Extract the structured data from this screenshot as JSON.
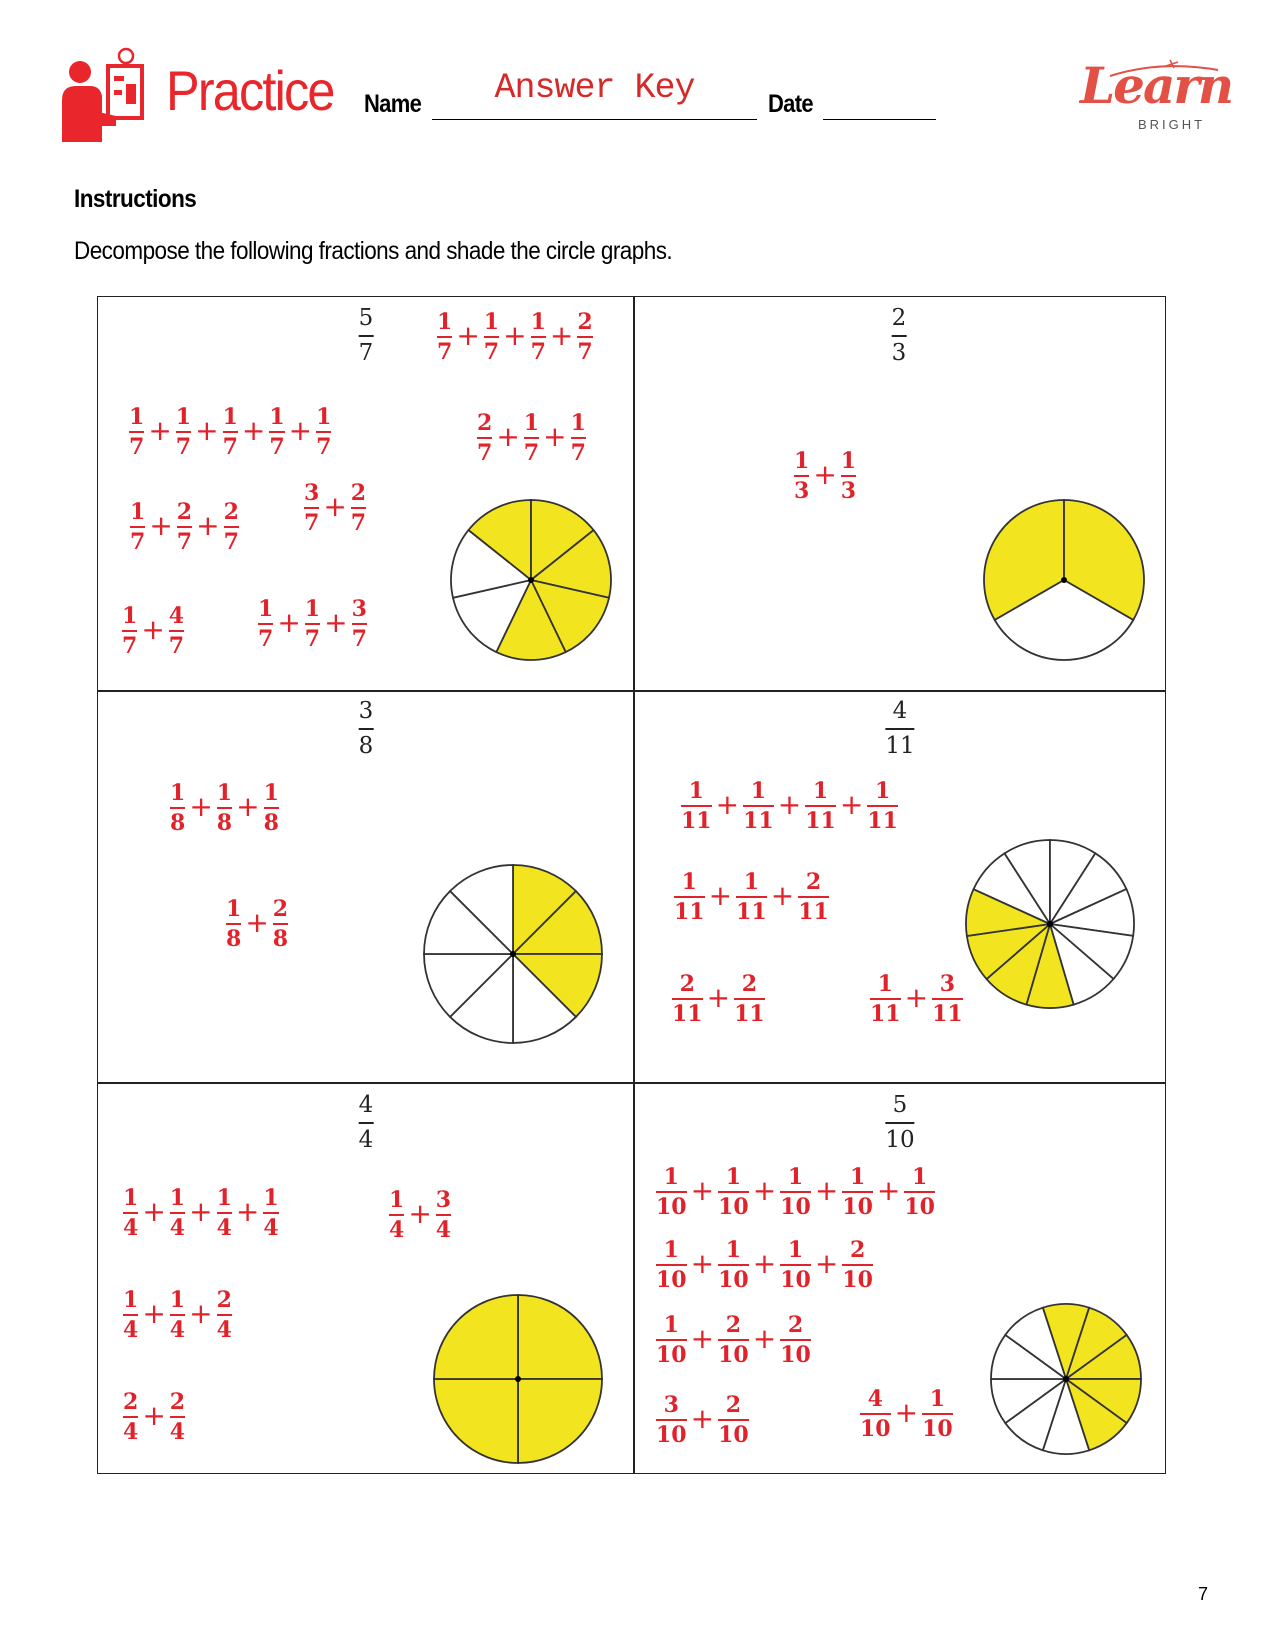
{
  "header": {
    "brand": "Practice",
    "name_label": "Name",
    "name_value": "Answer Key",
    "date_label": "Date",
    "date_value": "",
    "logo_text": "Learn",
    "logo_sub": "BRIGHT"
  },
  "instructions": {
    "heading": "Instructions",
    "text": "Decompose the following fractions and shade the circle graphs."
  },
  "colors": {
    "brand": "#e8262c",
    "answer": "#e0232b",
    "shade": "#f2e51f",
    "logo": "#e35045"
  },
  "cells": [
    {
      "target": [
        "5",
        "7"
      ],
      "circle": {
        "parts": 7,
        "shaded": 5
      },
      "decompositions": [
        [
          [
            "1",
            "7"
          ],
          [
            "1",
            "7"
          ],
          [
            "1",
            "7"
          ],
          [
            "2",
            "7"
          ]
        ],
        [
          [
            "1",
            "7"
          ],
          [
            "1",
            "7"
          ],
          [
            "1",
            "7"
          ],
          [
            "1",
            "7"
          ],
          [
            "1",
            "7"
          ]
        ],
        [
          [
            "2",
            "7"
          ],
          [
            "1",
            "7"
          ],
          [
            "1",
            "7"
          ]
        ],
        [
          [
            "1",
            "7"
          ],
          [
            "2",
            "7"
          ],
          [
            "2",
            "7"
          ]
        ],
        [
          [
            "3",
            "7"
          ],
          [
            "2",
            "7"
          ]
        ],
        [
          [
            "1",
            "7"
          ],
          [
            "4",
            "7"
          ]
        ],
        [
          [
            "1",
            "7"
          ],
          [
            "1",
            "7"
          ],
          [
            "3",
            "7"
          ]
        ]
      ]
    },
    {
      "target": [
        "2",
        "3"
      ],
      "circle": {
        "parts": 3,
        "shaded": 2
      },
      "decompositions": [
        [
          [
            "1",
            "3"
          ],
          [
            "1",
            "3"
          ]
        ]
      ]
    },
    {
      "target": [
        "3",
        "8"
      ],
      "circle": {
        "parts": 8,
        "shaded": 3
      },
      "decompositions": [
        [
          [
            "1",
            "8"
          ],
          [
            "1",
            "8"
          ],
          [
            "1",
            "8"
          ]
        ],
        [
          [
            "1",
            "8"
          ],
          [
            "2",
            "8"
          ]
        ]
      ]
    },
    {
      "target": [
        "4",
        "11"
      ],
      "circle": {
        "parts": 11,
        "shaded": 4
      },
      "decompositions": [
        [
          [
            "1",
            "11"
          ],
          [
            "1",
            "11"
          ],
          [
            "1",
            "11"
          ],
          [
            "1",
            "11"
          ]
        ],
        [
          [
            "1",
            "11"
          ],
          [
            "1",
            "11"
          ],
          [
            "2",
            "11"
          ]
        ],
        [
          [
            "2",
            "11"
          ],
          [
            "2",
            "11"
          ]
        ],
        [
          [
            "1",
            "11"
          ],
          [
            "3",
            "11"
          ]
        ]
      ]
    },
    {
      "target": [
        "4",
        "4"
      ],
      "circle": {
        "parts": 4,
        "shaded": 4
      },
      "decompositions": [
        [
          [
            "1",
            "4"
          ],
          [
            "1",
            "4"
          ],
          [
            "1",
            "4"
          ],
          [
            "1",
            "4"
          ]
        ],
        [
          [
            "1",
            "4"
          ],
          [
            "3",
            "4"
          ]
        ],
        [
          [
            "1",
            "4"
          ],
          [
            "1",
            "4"
          ],
          [
            "2",
            "4"
          ]
        ],
        [
          [
            "2",
            "4"
          ],
          [
            "2",
            "4"
          ]
        ]
      ]
    },
    {
      "target": [
        "5",
        "10"
      ],
      "circle": {
        "parts": 10,
        "shaded": 5
      },
      "decompositions": [
        [
          [
            "1",
            "10"
          ],
          [
            "1",
            "10"
          ],
          [
            "1",
            "10"
          ],
          [
            "1",
            "10"
          ],
          [
            "1",
            "10"
          ]
        ],
        [
          [
            "1",
            "10"
          ],
          [
            "1",
            "10"
          ],
          [
            "1",
            "10"
          ],
          [
            "2",
            "10"
          ]
        ],
        [
          [
            "1",
            "10"
          ],
          [
            "2",
            "10"
          ],
          [
            "2",
            "10"
          ]
        ],
        [
          [
            "3",
            "10"
          ],
          [
            "2",
            "10"
          ]
        ],
        [
          [
            "4",
            "10"
          ],
          [
            "1",
            "10"
          ]
        ]
      ]
    }
  ],
  "page_number": "7"
}
